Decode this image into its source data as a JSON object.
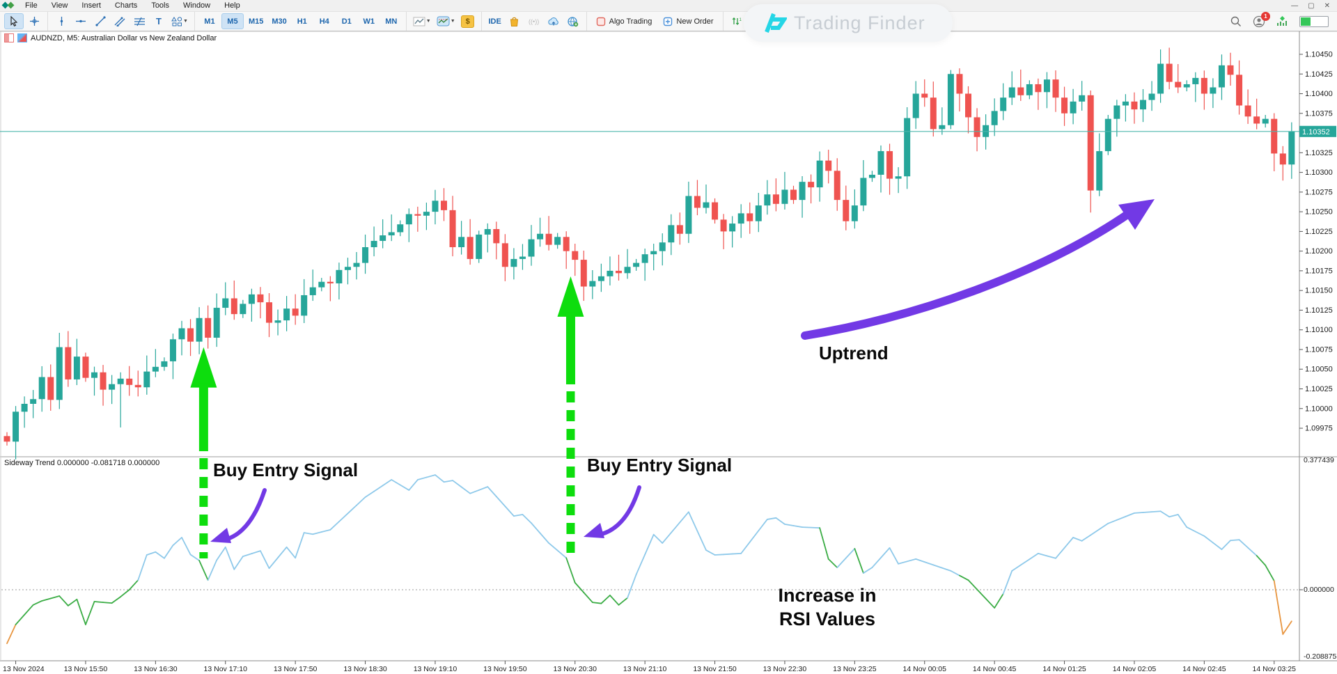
{
  "window": {
    "menu": [
      "File",
      "View",
      "Insert",
      "Charts",
      "Tools",
      "Window",
      "Help"
    ],
    "control_glyphs": {
      "minimize": "—",
      "maximize": "▢",
      "close": "✕"
    }
  },
  "toolbar": {
    "timeframes": [
      "M1",
      "M5",
      "M15",
      "M30",
      "H1",
      "H4",
      "D1",
      "W1",
      "MN"
    ],
    "selected_timeframe": "M5",
    "ide_label": "IDE",
    "algo_trading_label": "Algo Trading",
    "new_order_label": "New Order",
    "bars_toggle_label": "00",
    "dollar_glyph": "$",
    "signal_glyph": "((•))",
    "badge_count": "1"
  },
  "watermark": {
    "text": "Trading Finder"
  },
  "symbol_bar": {
    "title": "AUDNZD, M5:  Australian Dollar vs New Zealand Dollar"
  },
  "indicator_bar": {
    "label": "Sideway Trend 0.000000 -0.081718 0.000000"
  },
  "annotations": {
    "buy1": "Buy Entry Signal",
    "buy2": "Buy Entry Signal",
    "uptrend": "Uptrend",
    "rsi_line1": "Increase in",
    "rsi_line2": "RSI Values"
  },
  "price_axis": {
    "labels": [
      1.1045,
      1.10425,
      1.104,
      1.10375,
      1.10325,
      1.103,
      1.10275,
      1.1025,
      1.10225,
      1.102,
      1.10175,
      1.1015,
      1.10125,
      1.101,
      1.10075,
      1.1005,
      1.10025,
      1.1,
      1.09975
    ],
    "current_price_tag": "1.10352"
  },
  "indicator_axis": {
    "top": "0.377439",
    "zero": "0.000000",
    "bottom": "-0.208875"
  },
  "time_axis": [
    [
      1,
      "13 Nov 2024"
    ],
    [
      9,
      "13 Nov 15:50"
    ],
    [
      17,
      "13 Nov 16:30"
    ],
    [
      25,
      "13 Nov 17:10"
    ],
    [
      33,
      "13 Nov 17:50"
    ],
    [
      41,
      "13 Nov 18:30"
    ],
    [
      49,
      "13 Nov 19:10"
    ],
    [
      57,
      "13 Nov 19:50"
    ],
    [
      65,
      "13 Nov 20:30"
    ],
    [
      73,
      "13 Nov 21:10"
    ],
    [
      81,
      "13 Nov 21:50"
    ],
    [
      89,
      "13 Nov 22:30"
    ],
    [
      97,
      "13 Nov 23:25"
    ],
    [
      105,
      "14 Nov 00:05"
    ],
    [
      113,
      "14 Nov 00:45"
    ],
    [
      121,
      "14 Nov 01:25"
    ],
    [
      129,
      "14 Nov 02:05"
    ],
    [
      137,
      "14 Nov 02:45"
    ],
    [
      145,
      "14 Nov 03:25"
    ]
  ],
  "chart_data": {
    "type": "candlestick-with-indicator-line",
    "symbol": "AUDNZD",
    "period": "M5",
    "open_rule": "previous_close",
    "first_open": 1.09965,
    "current_price": 1.10352,
    "closes": [
      1.09958,
      1.09996,
      1.10006,
      1.10012,
      1.1004,
      1.10011,
      1.10078,
      1.10037,
      1.10066,
      1.10039,
      1.10046,
      1.10024,
      1.10031,
      1.10038,
      1.1003,
      1.10027,
      1.10047,
      1.10053,
      1.1006,
      1.10088,
      1.10102,
      1.10085,
      1.10115,
      1.1009,
      1.10128,
      1.1014,
      1.1012,
      1.10133,
      1.10145,
      1.10135,
      1.10109,
      1.10112,
      1.10127,
      1.10118,
      1.10144,
      1.10154,
      1.10161,
      1.10159,
      1.10176,
      1.1018,
      1.10185,
      1.10205,
      1.10213,
      1.1022,
      1.10224,
      1.10234,
      1.10247,
      1.10245,
      1.1025,
      1.10264,
      1.10252,
      1.10205,
      1.10218,
      1.1019,
      1.10221,
      1.10228,
      1.1021,
      1.1018,
      1.1019,
      1.10193,
      1.10215,
      1.10222,
      1.10208,
      1.10218,
      1.102,
      1.10189,
      1.10155,
      1.10162,
      1.10168,
      1.10175,
      1.10172,
      1.1018,
      1.10185,
      1.10196,
      1.102,
      1.10211,
      1.10233,
      1.10222,
      1.1027,
      1.10255,
      1.10262,
      1.1024,
      1.10225,
      1.10235,
      1.10248,
      1.10238,
      1.10258,
      1.10272,
      1.1026,
      1.10278,
      1.10265,
      1.10288,
      1.10281,
      1.10315,
      1.10302,
      1.10265,
      1.10238,
      1.10258,
      1.10293,
      1.10297,
      1.10327,
      1.10292,
      1.10295,
      1.10369,
      1.104,
      1.10395,
      1.10355,
      1.1036,
      1.10425,
      1.104,
      1.1037,
      1.10345,
      1.1036,
      1.10378,
      1.10395,
      1.10408,
      1.10398,
      1.10412,
      1.10402,
      1.10418,
      1.10395,
      1.10375,
      1.1039,
      1.10398,
      1.10277,
      1.10327,
      1.10368,
      1.10385,
      1.1039,
      1.1038,
      1.10392,
      1.104,
      1.10438,
      1.10415,
      1.10408,
      1.10412,
      1.1042,
      1.104,
      1.10408,
      1.10436,
      1.10424,
      1.10385,
      1.10371,
      1.10362,
      1.10368,
      1.10324,
      1.1031,
      1.10352
    ],
    "wick_overrides": {
      "13": [
        8e-05,
        0.00055
      ],
      "124": [
        6e-05,
        0.00028
      ]
    },
    "indicator": {
      "name": "Sideway Trend",
      "range_top": 0.377439,
      "range_bottom": -0.208875,
      "points": [
        [
          0,
          -0.145
        ],
        [
          1,
          -0.094
        ],
        [
          3,
          -0.041
        ],
        [
          4,
          -0.03
        ],
        [
          6,
          -0.017
        ],
        [
          7,
          -0.043
        ],
        [
          8,
          -0.026
        ],
        [
          9,
          -0.094
        ],
        [
          10,
          -0.032
        ],
        [
          12,
          -0.036
        ],
        [
          13,
          -0.019
        ],
        [
          14,
          0.0
        ],
        [
          15,
          0.026
        ],
        [
          16,
          0.094
        ],
        [
          17,
          0.102
        ],
        [
          18,
          0.085
        ],
        [
          19,
          0.12
        ],
        [
          20,
          0.141
        ],
        [
          21,
          0.095
        ],
        [
          22,
          0.079
        ],
        [
          23,
          0.026
        ],
        [
          24,
          0.08
        ],
        [
          25,
          0.115
        ],
        [
          26,
          0.055
        ],
        [
          27,
          0.09
        ],
        [
          29,
          0.105
        ],
        [
          30,
          0.058
        ],
        [
          32,
          0.115
        ],
        [
          33,
          0.086
        ],
        [
          34,
          0.154
        ],
        [
          35,
          0.15
        ],
        [
          37,
          0.162
        ],
        [
          41,
          0.25
        ],
        [
          44,
          0.297
        ],
        [
          46,
          0.269
        ],
        [
          47,
          0.297
        ],
        [
          49,
          0.31
        ],
        [
          50,
          0.291
        ],
        [
          51,
          0.295
        ],
        [
          53,
          0.26
        ],
        [
          55,
          0.278
        ],
        [
          58,
          0.199
        ],
        [
          59,
          0.203
        ],
        [
          60,
          0.18
        ],
        [
          62,
          0.126
        ],
        [
          64,
          0.086
        ],
        [
          65,
          0.019
        ],
        [
          67,
          -0.034
        ],
        [
          68,
          -0.037
        ],
        [
          69,
          -0.015
        ],
        [
          70,
          -0.041
        ],
        [
          71,
          -0.022
        ],
        [
          72,
          0.041
        ],
        [
          74,
          0.149
        ],
        [
          75,
          0.126
        ],
        [
          78,
          0.21
        ],
        [
          80,
          0.107
        ],
        [
          81,
          0.094
        ],
        [
          84,
          0.098
        ],
        [
          87,
          0.19
        ],
        [
          88,
          0.194
        ],
        [
          89,
          0.177
        ],
        [
          91,
          0.169
        ],
        [
          93,
          0.167
        ],
        [
          94,
          0.083
        ],
        [
          95,
          0.06
        ],
        [
          97,
          0.111
        ],
        [
          98,
          0.045
        ],
        [
          99,
          0.06
        ],
        [
          101,
          0.113
        ],
        [
          102,
          0.07
        ],
        [
          104,
          0.083
        ],
        [
          108,
          0.051
        ],
        [
          110,
          0.026
        ],
        [
          113,
          -0.049
        ],
        [
          114,
          -0.011
        ],
        [
          115,
          0.051
        ],
        [
          118,
          0.098
        ],
        [
          120,
          0.085
        ],
        [
          122,
          0.141
        ],
        [
          123,
          0.132
        ],
        [
          126,
          0.179
        ],
        [
          129,
          0.207
        ],
        [
          132,
          0.212
        ],
        [
          133,
          0.197
        ],
        [
          134,
          0.203
        ],
        [
          135,
          0.169
        ],
        [
          137,
          0.145
        ],
        [
          139,
          0.109
        ],
        [
          140,
          0.133
        ],
        [
          141,
          0.135
        ],
        [
          143,
          0.092
        ],
        [
          144,
          0.066
        ],
        [
          145,
          0.024
        ],
        [
          146,
          -0.12
        ],
        [
          147,
          -0.085
        ]
      ],
      "green_segments": [
        [
          1,
          15
        ],
        [
          22,
          23
        ],
        [
          64,
          71
        ],
        [
          93,
          95
        ],
        [
          97,
          98
        ],
        [
          109,
          114
        ],
        [
          143,
          145
        ]
      ],
      "orange_segments": [
        [
          0,
          1
        ],
        [
          145,
          147
        ]
      ]
    },
    "signals": [
      {
        "index": 22.5,
        "tip_price": 1.10078,
        "solid_to": 648,
        "dash_to": 802,
        "label": "Buy Entry Signal"
      },
      {
        "index": 64.5,
        "tip_price": 1.10168,
        "solid_to": 552,
        "dash_to": 796,
        "label": "Buy Entry Signal"
      }
    ]
  },
  "colors": {
    "bull": "#26a69a",
    "bear": "#ef5350",
    "current_line": "#4db6ac",
    "tag_bg": "#26a69a",
    "ind_blue": "#8ec9ea",
    "ind_green": "#3aac44",
    "ind_orange": "#e8953f",
    "signal_green": "#0ddd0d",
    "purple": "#7239e5",
    "axis_text": "#1a1a1a",
    "tf_blue": "#1d66ad"
  }
}
